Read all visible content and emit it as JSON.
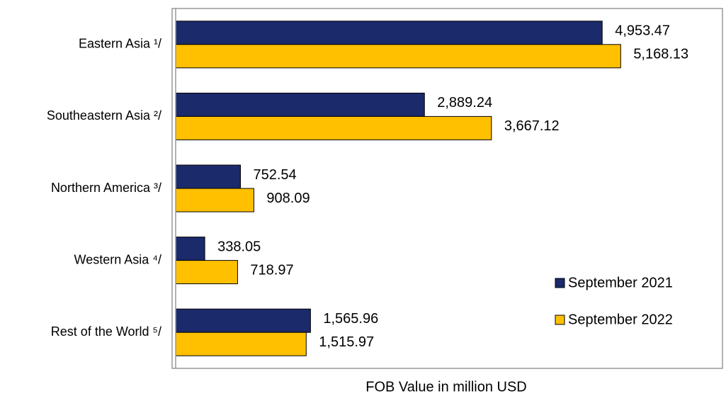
{
  "chart_data": {
    "type": "hbar",
    "x_label": "FOB  Value in million USD",
    "categories": [
      "Eastern Asia ¹/",
      "Southeastern Asia ²/",
      "Northern America ³/",
      "Western Asia ⁴/",
      "Rest of the World ⁵/"
    ],
    "series": [
      {
        "name": "September 2021",
        "color": "#1b2a6b",
        "values": [
          4953.47,
          2889.24,
          752.54,
          338.05,
          1565.96
        ],
        "value_labels": [
          "4,953.47",
          "2,889.24",
          "752.54",
          "338.05",
          "1,565.96"
        ]
      },
      {
        "name": "September 2022",
        "color": "#ffc000",
        "values": [
          5168.13,
          3667.12,
          908.09,
          718.97,
          1515.97
        ],
        "value_labels": [
          "5,168.13",
          "3,667.12",
          "908.09",
          "718.97",
          "1,515.97"
        ]
      }
    ],
    "xlim": [
      0,
      6350
    ],
    "legend": "bottom-right"
  }
}
